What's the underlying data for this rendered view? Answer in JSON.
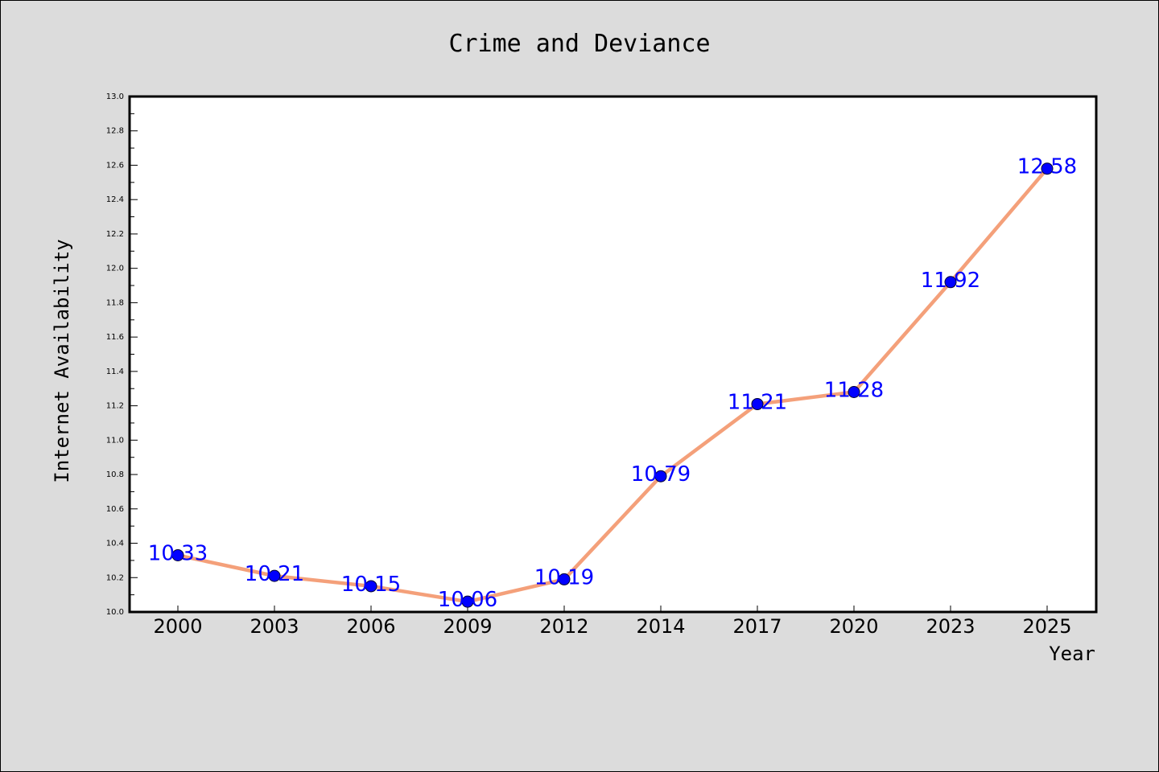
{
  "chart_data": {
    "type": "line",
    "title": "Crime and Deviance",
    "xlabel": "Year",
    "ylabel": "Internet Availability",
    "categories": [
      "2000",
      "2003",
      "2006",
      "2009",
      "2012",
      "2014",
      "2017",
      "2020",
      "2023",
      "2025"
    ],
    "series": [
      {
        "values": [
          10.33,
          10.21,
          10.15,
          10.06,
          10.19,
          10.79,
          11.21,
          11.28,
          11.92,
          12.58
        ],
        "line_color": "#f4a07a",
        "marker_color": "#0000ff"
      }
    ],
    "data_labels": [
      "10.33",
      "10.21",
      "10.15",
      "10.06",
      "10.19",
      "10.79",
      "11.21",
      "11.28",
      "11.92",
      "12.58"
    ],
    "ylim": [
      10.0,
      13.0
    ],
    "yticks": [
      "10.0",
      "10.2",
      "10.4",
      "10.6",
      "10.8",
      "11.0",
      "11.2",
      "11.4",
      "11.6",
      "11.8",
      "12.0",
      "12.2",
      "12.4",
      "12.6",
      "12.8",
      "13.0"
    ],
    "grid": false,
    "legend": "none",
    "colors": {
      "background": "#dcdcdc",
      "plot_background": "#ffffff",
      "line": "#f4a07a",
      "marker": "#0000ff",
      "data_label": "#0000ff"
    }
  }
}
